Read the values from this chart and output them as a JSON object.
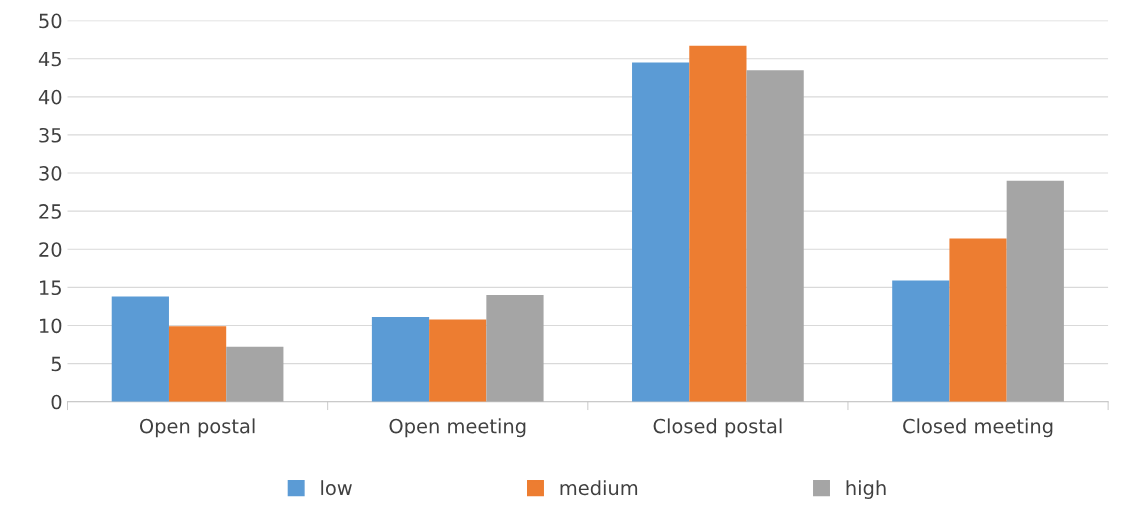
{
  "chart_data": {
    "type": "bar",
    "categories": [
      "Open postal",
      "Open meeting",
      "Closed postal",
      "Closed meeting"
    ],
    "series": [
      {
        "name": "low",
        "color": "#5b9bd5",
        "values": [
          13.8,
          11.1,
          44.5,
          15.9
        ]
      },
      {
        "name": "medium",
        "color": "#ed7d31",
        "values": [
          9.9,
          10.8,
          46.7,
          21.4
        ]
      },
      {
        "name": "high",
        "color": "#a5a5a5",
        "values": [
          7.2,
          14.0,
          43.5,
          29.0
        ]
      }
    ],
    "ylim": [
      0,
      50
    ],
    "yticks": [
      0,
      5,
      10,
      15,
      20,
      25,
      30,
      35,
      40,
      45,
      50
    ],
    "grid": "y",
    "legend": "bottom"
  }
}
